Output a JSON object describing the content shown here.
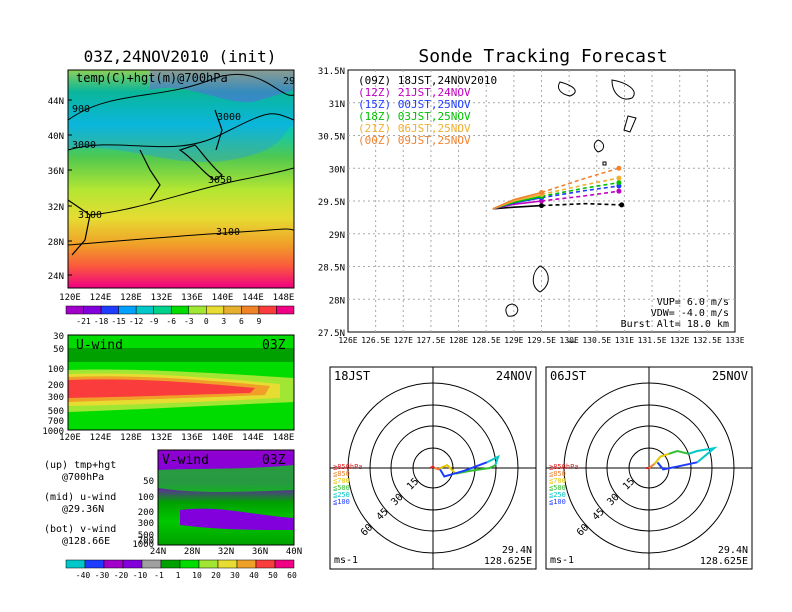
{
  "left": {
    "title": "03Z,24NOV2010 (init)",
    "map_label": "temp(C)+hgt(m)@700hPa",
    "contours": [
      "900",
      "3000",
      "3000",
      "3050",
      "3100",
      "3100",
      "29"
    ],
    "lat_ticks": [
      "44N",
      "40N",
      "36N",
      "32N",
      "28N",
      "24N"
    ],
    "lon_ticks": [
      "120E",
      "124E",
      "128E",
      "132E",
      "136E",
      "140E",
      "144E",
      "148E"
    ],
    "temp_scale": [
      "-21",
      "-18",
      "-15",
      "-12",
      "-9",
      "-6",
      "-3",
      "0",
      "3",
      "6",
      "9"
    ],
    "temp_colors": [
      "#a000c8",
      "#8200dc",
      "#1e3cff",
      "#00a0ff",
      "#00c8c8",
      "#00d28c",
      "#00dc00",
      "#a0e632",
      "#e6dc32",
      "#e6af2d",
      "#f08228",
      "#fa3c3c",
      "#f00082"
    ],
    "uwind": {
      "label": "U-wind",
      "time": "03Z",
      "p_ticks": [
        "30",
        "50",
        "100",
        "200",
        "300",
        "500",
        "700",
        "1000"
      ],
      "lon_ticks": [
        "120E",
        "124E",
        "128E",
        "132E",
        "136E",
        "140E",
        "144E",
        "148E"
      ]
    },
    "vwind": {
      "label": "V-wind",
      "time": "03Z",
      "p_ticks": [
        "50",
        "100",
        "200",
        "300",
        "500",
        "700",
        "1000"
      ],
      "lat_ticks": [
        "24N",
        "28N",
        "32N",
        "36N",
        "40N"
      ]
    },
    "notes": [
      {
        "a": "(up) tmp+hgt",
        "b": "@700hPa"
      },
      {
        "a": "(mid) u-wind",
        "b": "@29.36N"
      },
      {
        "a": "(bot) v-wind",
        "b": "@128.66E"
      }
    ],
    "wind_scale": [
      "-40",
      "-30",
      "-20",
      "-10",
      "-1",
      "1",
      "10",
      "20",
      "30",
      "40",
      "50",
      "60"
    ],
    "wind_colors": [
      "#00c8c8",
      "#1e3cff",
      "#a000c8",
      "#8200dc",
      "#a0a0a0",
      "#00a000",
      "#00dc00",
      "#a0e632",
      "#e6dc32",
      "#f0a028",
      "#fa3c3c",
      "#f00082"
    ]
  },
  "chart_data": {
    "type": "line",
    "title": "Sonde Tracking Forecast",
    "xlim": [
      126,
      133
    ],
    "ylim": [
      27.5,
      31.5
    ],
    "x_ticks": [
      "126E",
      "126.5E",
      "127E",
      "127.5E",
      "128E",
      "128.5E",
      "129E",
      "129.5E",
      "130E",
      "130.5E",
      "131E",
      "131.5E",
      "132E",
      "132.5E",
      "133E"
    ],
    "y_ticks": [
      "31.5N",
      "31N",
      "30.5N",
      "30N",
      "29.5N",
      "29N",
      "28.5N",
      "28N",
      "27.5N"
    ],
    "grid": true,
    "legend_position": "top-left",
    "series": [
      {
        "name": "(09Z)  18JST,24NOV2010",
        "color": "#000000",
        "x": [
          128.62,
          128.9,
          129.5,
          130.3,
          130.95
        ],
        "y": [
          29.38,
          29.4,
          29.43,
          29.46,
          29.44
        ]
      },
      {
        "name": "(12Z)  21JST,24NOV",
        "color": "#c000c0",
        "x": [
          128.62,
          129.0,
          129.5,
          130.3,
          130.9
        ],
        "y": [
          29.38,
          29.45,
          29.5,
          29.58,
          29.65
        ]
      },
      {
        "name": "(15Z)  00JST,25NOV",
        "color": "#1e3cff",
        "x": [
          128.62,
          129.0,
          129.5,
          130.3,
          130.9
        ],
        "y": [
          29.38,
          29.47,
          29.55,
          29.66,
          29.73
        ]
      },
      {
        "name": "(18Z)  03JST,25NOV",
        "color": "#00c000",
        "x": [
          128.62,
          129.0,
          129.5,
          130.3,
          130.9
        ],
        "y": [
          29.38,
          29.48,
          29.57,
          29.7,
          29.78
        ]
      },
      {
        "name": "(21Z)  06JST,25NOV",
        "color": "#f0b030",
        "x": [
          128.62,
          129.0,
          129.5,
          130.3,
          130.9
        ],
        "y": [
          29.38,
          29.5,
          29.6,
          29.75,
          29.85
        ]
      },
      {
        "name": "(00Z)  09JST,25NOV",
        "color": "#f08230",
        "x": [
          128.62,
          129.0,
          129.5,
          130.3,
          130.9
        ],
        "y": [
          29.38,
          29.52,
          29.63,
          29.85,
          30.0
        ]
      }
    ],
    "info": [
      "VUP= 6.0 m/s",
      "VDW= -4.0 m/s",
      "Burst Alt= 18.0 km"
    ]
  },
  "hodographs": [
    {
      "time": "18JST",
      "date": "24NOV",
      "rings": [
        "15",
        "30",
        "45",
        "60"
      ],
      "unit": "ms-1",
      "lat": "29.4N",
      "lon": "128.625E",
      "legend": [
        {
          "t": "≧850hPa",
          "c": "#e02020"
        },
        {
          "t": "≦850",
          "c": "#f08230"
        },
        {
          "t": "≦700",
          "c": "#e6c800"
        },
        {
          "t": "≦500",
          "c": "#30c030"
        },
        {
          "t": "≦250",
          "c": "#00c8c8"
        },
        {
          "t": "≦100",
          "c": "#1e3cff"
        }
      ],
      "segs": [
        {
          "c": "#e02020",
          "u": [
            -2,
            0,
            1
          ],
          "v": [
            0,
            1,
            0
          ]
        },
        {
          "c": "#f08230",
          "u": [
            1,
            4,
            5
          ],
          "v": [
            0,
            -1,
            0
          ]
        },
        {
          "c": "#e6c800",
          "u": [
            5,
            10,
            16
          ],
          "v": [
            0,
            2,
            -4
          ]
        },
        {
          "c": "#30c030",
          "u": [
            16,
            26,
            40,
            44
          ],
          "v": [
            -4,
            -2,
            0,
            2
          ]
        },
        {
          "c": "#00c8c8",
          "u": [
            44,
            46,
            38
          ],
          "v": [
            2,
            8,
            4
          ]
        },
        {
          "c": "#1e3cff",
          "u": [
            38,
            22,
            8,
            5
          ],
          "v": [
            4,
            -2,
            -6,
            -1
          ]
        }
      ]
    },
    {
      "time": "06JST",
      "date": "25NOV",
      "rings": [
        "15",
        "30",
        "45",
        "60"
      ],
      "unit": "ms-1",
      "lat": "29.4N",
      "lon": "128.625E",
      "legend": [
        {
          "t": "≧850hPa",
          "c": "#e02020"
        },
        {
          "t": "≦850",
          "c": "#f08230"
        },
        {
          "t": "≦700",
          "c": "#e6c800"
        },
        {
          "t": "≦500",
          "c": "#30c030"
        },
        {
          "t": "≦250",
          "c": "#00c8c8"
        },
        {
          "t": "≦100",
          "c": "#1e3cff"
        }
      ],
      "segs": [
        {
          "c": "#e02020",
          "u": [
            -2,
            0
          ],
          "v": [
            0,
            0
          ]
        },
        {
          "c": "#f08230",
          "u": [
            0,
            4
          ],
          "v": [
            0,
            3
          ]
        },
        {
          "c": "#e6c800",
          "u": [
            4,
            8,
            14
          ],
          "v": [
            3,
            8,
            10
          ]
        },
        {
          "c": "#30c030",
          "u": [
            14,
            20,
            28
          ],
          "v": [
            10,
            12,
            10
          ]
        },
        {
          "c": "#00c8c8",
          "u": [
            28,
            34,
            46,
            34
          ],
          "v": [
            10,
            12,
            14,
            4
          ]
        },
        {
          "c": "#1e3cff",
          "u": [
            34,
            20,
            10,
            6
          ],
          "v": [
            4,
            1,
            -1,
            4
          ]
        }
      ]
    }
  ]
}
